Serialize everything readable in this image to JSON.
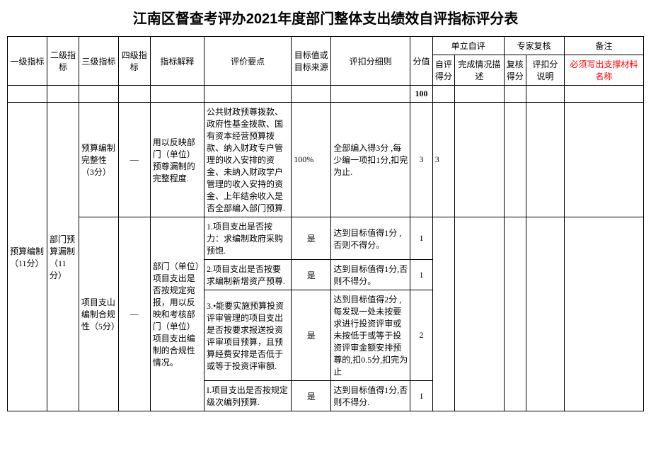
{
  "title": "江南区督查考评办2021年度部门整体支出绩效自评指标评分表",
  "headers": {
    "l1": "一级指标",
    "l2": "二级指标",
    "l3": "三级指标",
    "l4": "四级指标",
    "explanation": "指标解释",
    "point": "评价要点",
    "target": "目标值或目标来源",
    "rule": "评扣分细则",
    "score": "分值",
    "self_group": "单立自评",
    "self_score": "自评得分",
    "self_desc": "完成情况描述",
    "expert_group": "专家复核",
    "review_score": "复核得分",
    "deduct_expl": "评扣分说明",
    "note": "备注",
    "note_sub": "必须写出支撑材料名称"
  },
  "total_score": "100",
  "l1_label": "预算编制（11分）",
  "l2_label": "部门预算漏制（11分）",
  "l3_a": "预算编制完整性（3分）",
  "l3_b": "项目支山编制合规性（5分）",
  "dash": "—",
  "row1": {
    "explanation": "用以反映部门（单位）预尊漏制的完整程度.",
    "point": "公共财政预尊拨款、政府性基金拨款、国有资本经营预算拨款、纳入财政专户管理的收入安排的资金、未纳入财政学户管理的收入安持的资金、上年结余收入是否全部编入部门预算.",
    "target": "100%",
    "rule": "全部编入得3分 ,每少编一项扣1分,扣完为止.",
    "score": "3",
    "self": "3"
  },
  "row2_explanation": "部门（单位）项目支出是否按规定宛报，用以反映和考核部门（单位）项目支出编制的合规性情况。",
  "row2a": {
    "point": "1.项目支出是否按力：求编制政府采购预饱.",
    "target": "是",
    "rule": "达到目标值得1分 ,否则不得分。",
    "score": "1"
  },
  "row2b": {
    "point": "2.项目支出是否按要求编制新增资产预尊.",
    "target": "是",
    "rule": "达到目标值得1分,否则不得分。",
    "score": "1"
  },
  "row2c": {
    "point": "3.•能要实施预算投资评审管理的项目支出是否按要求报送投资评审项目预算，且预算经费安排是否低于或等于投资评审额.",
    "target": "是",
    "rule": "达到目标值得2分 ,每发现一处未按要求进行投资评审或未按低于或等于投资评审金额安排预尊的,扣0.5分,扣完为止",
    "score": "2"
  },
  "row2d": {
    "point": "I.项目支出是否按规定级次编列预算.",
    "target": "是",
    "rule": "达到目标值得1分,否则不得分.",
    "score": "1"
  }
}
